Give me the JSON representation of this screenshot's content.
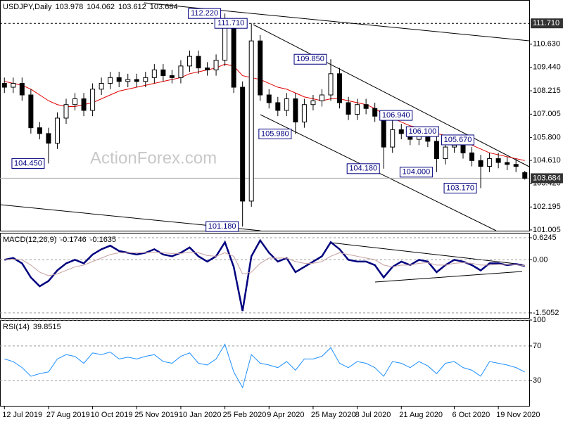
{
  "chart_data": [
    {
      "type": "candlestick",
      "title": "USDJPY,Daily",
      "watermark": "ActionForex.com",
      "color": "#000000",
      "categories": [
        "12 Jul 2019",
        null,
        null,
        null,
        null,
        "27 Aug 2019",
        null,
        null,
        null,
        null,
        "10 Oct 2019",
        null,
        null,
        null,
        null,
        "25 Nov 2019",
        null,
        null,
        null,
        null,
        "10 Jan 2020",
        null,
        null,
        null,
        null,
        "25 Feb 2020",
        null,
        null,
        null,
        null,
        "9 Apr 2020",
        null,
        null,
        null,
        null,
        "25 May 2020",
        null,
        null,
        null,
        null,
        "8 Jul 2020",
        null,
        null,
        null,
        null,
        "21 Aug 2020",
        null,
        null,
        null,
        null,
        null,
        "6 Oct 2020",
        null,
        null,
        null,
        null,
        "19 Nov 2020",
        null,
        null,
        null
      ],
      "open": [
        108.6,
        108.4,
        108.6,
        108.0,
        106.3,
        106.0,
        105.5,
        106.8,
        107.5,
        107.8,
        107.2,
        108.3,
        108.6,
        108.9,
        108.7,
        108.8,
        108.7,
        108.9,
        109.3,
        109.0,
        108.9,
        109.5,
        110.0,
        109.4,
        109.3,
        109.8,
        111.5,
        108.4,
        102.5,
        110.8,
        108.0,
        107.6,
        107.2,
        107.8,
        106.6,
        107.5,
        107.7,
        108.0,
        109.1,
        107.6,
        107.0,
        107.5,
        107.3,
        106.9,
        105.3,
        106.2,
        106.0,
        105.7,
        106.0,
        105.6,
        104.7,
        105.3,
        105.4,
        105.0,
        104.6,
        104.3,
        104.7,
        104.5,
        104.4,
        103.978
      ],
      "high": [
        108.9,
        108.9,
        108.9,
        108.3,
        106.6,
        106.3,
        107.1,
        107.8,
        108.1,
        108.1,
        108.6,
        108.9,
        109.2,
        109.2,
        109.1,
        109.1,
        109.2,
        109.6,
        109.6,
        109.3,
        109.8,
        110.3,
        110.3,
        109.7,
        110.1,
        112.22,
        111.8,
        108.7,
        111.71,
        111.1,
        108.3,
        107.9,
        108.1,
        108.1,
        107.8,
        108.0,
        108.3,
        109.85,
        109.4,
        107.9,
        107.8,
        107.8,
        107.6,
        107.2,
        106.94,
        106.5,
        106.3,
        106.1,
        106.3,
        105.9,
        105.6,
        105.67,
        105.7,
        105.3,
        104.9,
        105.0,
        105.0,
        104.8,
        104.7,
        104.062
      ],
      "low": [
        108.1,
        108.1,
        107.7,
        106.0,
        105.7,
        104.45,
        105.2,
        106.5,
        107.2,
        106.9,
        106.9,
        108.0,
        108.3,
        108.4,
        108.4,
        108.4,
        108.4,
        108.6,
        108.7,
        108.6,
        108.6,
        109.2,
        109.1,
        109.0,
        109.0,
        109.5,
        108.1,
        101.18,
        102.2,
        107.7,
        107.3,
        106.9,
        106.9,
        105.98,
        106.3,
        107.2,
        107.4,
        107.7,
        107.3,
        106.7,
        106.7,
        107.0,
        106.6,
        104.18,
        105.0,
        105.7,
        105.4,
        105.4,
        105.3,
        104.0,
        104.4,
        105.0,
        104.7,
        104.3,
        103.17,
        104.0,
        104.2,
        104.1,
        104.0,
        103.612
      ],
      "close": [
        108.4,
        108.6,
        108.0,
        106.3,
        106.0,
        105.5,
        106.8,
        107.5,
        107.8,
        107.2,
        108.3,
        108.6,
        108.9,
        108.7,
        108.8,
        108.7,
        108.9,
        109.3,
        109.0,
        108.9,
        109.5,
        110.0,
        109.4,
        109.3,
        109.8,
        111.5,
        108.4,
        102.5,
        110.8,
        108.0,
        107.6,
        107.2,
        107.8,
        106.6,
        107.5,
        107.7,
        108.0,
        109.1,
        107.6,
        107.0,
        107.5,
        107.3,
        106.9,
        105.3,
        106.2,
        106.0,
        105.7,
        106.0,
        105.6,
        104.7,
        105.3,
        105.4,
        105.0,
        104.6,
        104.3,
        104.7,
        104.5,
        104.4,
        104.3,
        103.684
      ],
      "ma": {
        "color": "#e00000",
        "values": [
          108.7,
          108.6,
          108.5,
          108.3,
          108.0,
          107.7,
          107.5,
          107.4,
          107.4,
          107.5,
          107.6,
          107.8,
          108.0,
          108.2,
          108.3,
          108.4,
          108.5,
          108.6,
          108.7,
          108.8,
          108.9,
          109.1,
          109.2,
          109.3,
          109.4,
          109.6,
          109.5,
          109.0,
          108.9,
          108.8,
          108.6,
          108.4,
          108.3,
          108.1,
          107.9,
          107.8,
          107.7,
          107.8,
          107.8,
          107.7,
          107.6,
          107.5,
          107.3,
          107.0,
          106.8,
          106.6,
          106.4,
          106.3,
          106.2,
          106.0,
          105.9,
          105.8,
          105.6,
          105.4,
          105.2,
          105.0,
          104.9,
          104.8,
          104.7,
          104.6
        ]
      },
      "ylim": [
        100.93,
        112.92
      ],
      "yticks": [
        {
          "value": 110.63,
          "label": "110.630"
        },
        {
          "value": 109.44,
          "label": "109.440"
        },
        108.215,
        107.005,
        {
          "value": 105.8,
          "label": "105.800"
        },
        {
          "value": 104.61,
          "label": "104.610"
        },
        {
          "value": 103.42,
          "label": "103.420"
        },
        102.195,
        101.005
      ],
      "level": {
        "value": 111.71,
        "label": "111.710"
      },
      "annotations": [
        {
          "value": 112.22,
          "label": "112.220"
        },
        {
          "value": 111.71,
          "label": "111.710"
        },
        {
          "value": 109.85,
          "label": "109.850"
        },
        {
          "value": 105.98,
          "label": "105.980"
        },
        {
          "value": 104.45,
          "label": "104.450"
        },
        {
          "value": 101.18,
          "label": "101.180"
        },
        {
          "value": 104.18,
          "label": "104.180"
        },
        {
          "value": 106.94,
          "label": "106.940"
        },
        {
          "value": 106.1,
          "label": "106.100"
        },
        {
          "value": 105.67,
          "label": "105.670"
        },
        {
          "value": 104.0,
          "label": "104.000"
        },
        {
          "value": 103.17,
          "label": "103.170"
        }
      ]
    },
    {
      "type": "line",
      "title": "MACD(12,26,9)",
      "series": [
        {
          "color": "#00007f",
          "values": [
            0.0,
            0.05,
            -0.1,
            -0.5,
            -0.75,
            -0.6,
            -0.3,
            -0.1,
            0.0,
            -0.1,
            0.15,
            0.3,
            0.4,
            0.25,
            0.2,
            0.15,
            0.2,
            0.3,
            0.15,
            0.1,
            0.2,
            0.35,
            0.1,
            -0.05,
            0.1,
            0.5,
            -0.2,
            -1.45,
            0.1,
            0.55,
            0.2,
            -0.05,
            0.05,
            -0.35,
            -0.2,
            -0.05,
            0.1,
            0.5,
            0.3,
            0.0,
            -0.05,
            -0.05,
            -0.15,
            -0.5,
            -0.2,
            -0.05,
            -0.15,
            0.0,
            -0.05,
            -0.35,
            -0.15,
            0.0,
            -0.05,
            -0.15,
            -0.3,
            -0.1,
            -0.1,
            -0.15,
            -0.12,
            -0.1746
          ]
        },
        {
          "color": "#c8a0a0",
          "values": [
            0.0,
            0.02,
            0.0,
            -0.15,
            -0.35,
            -0.45,
            -0.4,
            -0.3,
            -0.2,
            -0.15,
            -0.05,
            0.05,
            0.15,
            0.2,
            0.2,
            0.2,
            0.2,
            0.22,
            0.2,
            0.18,
            0.18,
            0.22,
            0.2,
            0.12,
            0.1,
            0.2,
            0.1,
            -0.4,
            -0.35,
            -0.1,
            0.05,
            0.05,
            0.05,
            -0.05,
            -0.1,
            -0.1,
            -0.05,
            0.1,
            0.2,
            0.15,
            0.1,
            0.05,
            0.0,
            -0.15,
            -0.2,
            -0.15,
            -0.15,
            -0.1,
            -0.08,
            -0.15,
            -0.15,
            -0.1,
            -0.08,
            -0.1,
            -0.15,
            -0.15,
            -0.13,
            -0.13,
            -0.14,
            -0.1635
          ]
        }
      ],
      "ylim": [
        -1.666,
        0.765
      ],
      "yticks": [
        0.6245,
        {
          "value": 0,
          "label": "0.00"
        },
        -1.5052
      ]
    },
    {
      "type": "line",
      "title": "RSI(14)",
      "series": [
        {
          "color": "#1e90ff",
          "values": [
            55,
            52,
            45,
            35,
            38,
            40,
            55,
            60,
            58,
            50,
            62,
            60,
            63,
            55,
            57,
            55,
            58,
            60,
            52,
            50,
            58,
            62,
            50,
            48,
            55,
            72,
            40,
            22,
            60,
            50,
            48,
            45,
            52,
            42,
            55,
            55,
            58,
            68,
            50,
            45,
            52,
            50,
            45,
            35,
            52,
            50,
            45,
            52,
            47,
            38,
            50,
            52,
            45,
            42,
            35,
            52,
            50,
            48,
            45,
            39.8515
          ]
        }
      ],
      "ylim": [
        0,
        100
      ],
      "yticks": [
        100,
        70,
        30
      ]
    }
  ]
}
